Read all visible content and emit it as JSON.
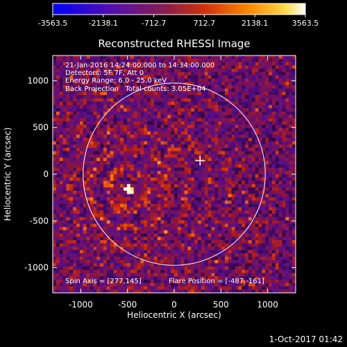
{
  "window": {
    "timestamp": "1-Oct-2017 01:42"
  },
  "colorbar": {
    "ticks": [
      "-3563.5",
      "-2138.1",
      "-712.7",
      "712.7",
      "2138.1",
      "3563.5"
    ],
    "tick_values": [
      -3563.5,
      -2138.1,
      -712.7,
      712.7,
      2138.1,
      3563.5
    ],
    "range": [
      -3563.5,
      3563.5
    ]
  },
  "chart_data": {
    "type": "heatmap",
    "title": "Reconstructed RHESSI Image",
    "xlabel": "Heliocentric X (arcsec)",
    "ylabel": "Heliocentric Y (arcsec)",
    "xlim": [
      -1300,
      1300
    ],
    "ylim": [
      -1270,
      1270
    ],
    "xticks": [
      -1000,
      -500,
      0,
      500,
      1000
    ],
    "yticks": [
      -1000,
      -500,
      0,
      500,
      1000
    ],
    "xtick_labels": [
      "-1000",
      "-500",
      "0",
      "500",
      "1000"
    ],
    "ytick_labels": [
      "-1000",
      "-500",
      "0",
      "500",
      "1000"
    ],
    "solar_limb_radius": 975,
    "bright_source": {
      "x": -487,
      "y": -161
    },
    "spin_axis_marker": {
      "x": 277,
      "y": 145
    },
    "annotations": [
      "21-Jan-2016 14:24:00.000 to 14:34:00.000",
      "Detectors: 5F 7F, Att 0",
      "Energy Range: 6.0 - 25.0 keV",
      "Back Projection   Total counts: 3.05E+04",
      "Spin Axis = [277,145]",
      "Flare Position = [-487,-161]"
    ]
  }
}
